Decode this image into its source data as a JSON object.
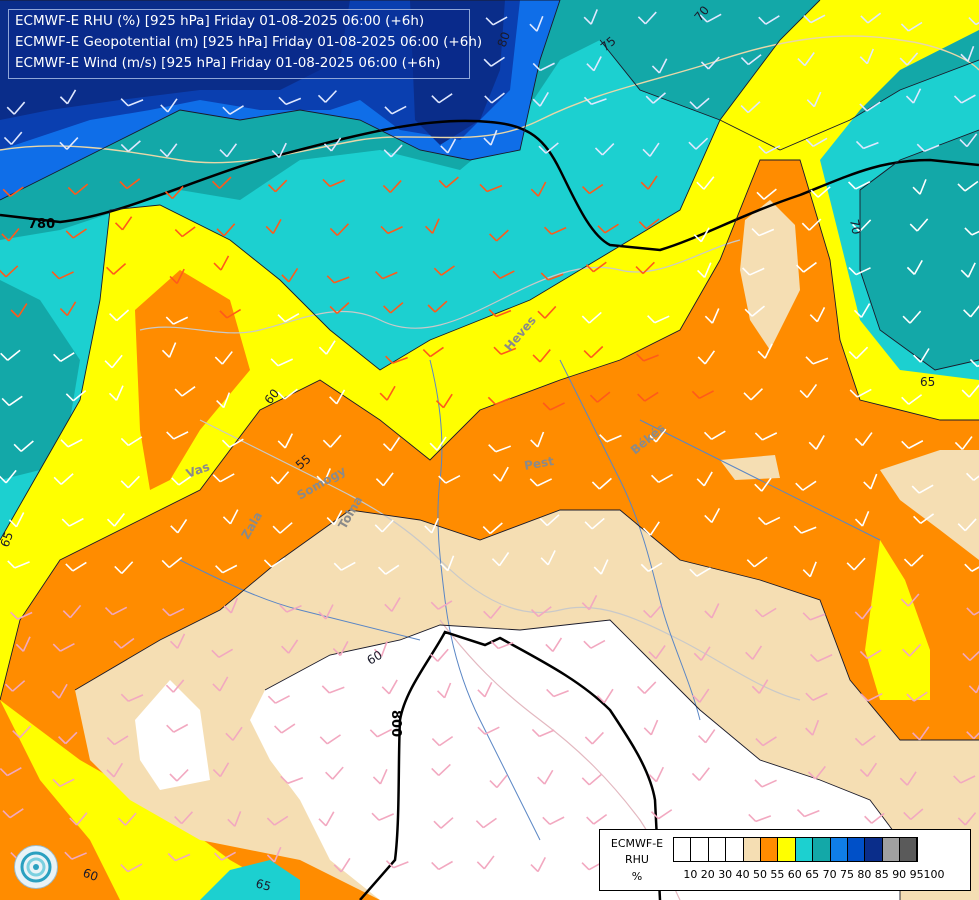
{
  "titles": {
    "line1": "ECMWF-E RHU (%) [925 hPa] Friday 01-08-2025 06:00 (+6h)",
    "line2": "ECMWF-E Geopotential (m) [925 hPa] Friday 01-08-2025 06:00 (+6h)",
    "line3": "ECMWF-E Wind (m/s) [925 hPa] Friday 01-08-2025 06:00 (+6h)"
  },
  "legend": {
    "title_line1": "ECMWF-E",
    "title_line2": "RHU",
    "title_line3": "%",
    "ticks": [
      "10",
      "20",
      "30",
      "40",
      "50",
      "55",
      "60",
      "65",
      "70",
      "75",
      "80",
      "85",
      "90",
      "95",
      "100"
    ],
    "colors": [
      "#ffffff",
      "#ffffff",
      "#ffffff",
      "#ffffff",
      "#f5deb3",
      "#ff8c00",
      "#ffff00",
      "#1cd0d0",
      "#13a8a8",
      "#0f7ee8",
      "#0050c8",
      "#0a2d8a",
      "#a0a0a0",
      "#5a5a5a"
    ]
  },
  "colors": {
    "white": "#ffffff",
    "wheat": "#f5deb3",
    "orange": "#ff8c00",
    "yellow": "#ffff00",
    "cyan": "#1cd0d0",
    "teal": "#13a8a8",
    "blue": "#0f6ee8",
    "darkblue": "#0a3fb0",
    "navy": "#0a2d8a"
  },
  "contour_labels": {
    "rh": [
      "55",
      "60",
      "60",
      "60",
      "65",
      "65",
      "65",
      "70",
      "70",
      "75",
      "80"
    ],
    "geopotential": [
      "780",
      "800"
    ]
  },
  "place_labels": [
    "Pest",
    "Heves",
    "Békés",
    "Tolna",
    "Somogy",
    "Vas",
    "Zala"
  ]
}
